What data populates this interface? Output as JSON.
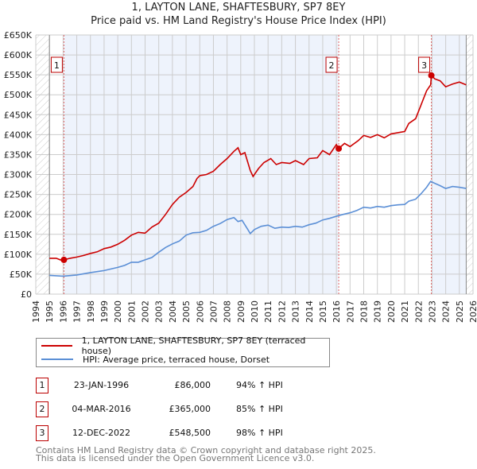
{
  "title_line1": "1, LAYTON LANE, SHAFTESBURY, SP7 8EY",
  "title_line2": "Price paid vs. HM Land Registry's House Price Index (HPI)",
  "legend": {
    "property": "1, LAYTON LANE, SHAFTESBURY, SP7 8EY (terraced house)",
    "hpi": "HPI: Average price, terraced house, Dorset"
  },
  "colors": {
    "property": "#cc0000",
    "hpi": "#5b8fd6",
    "band": "#eef3fc",
    "grid": "#cccccc"
  },
  "sales": [
    {
      "num": "1",
      "date": "23-JAN-1996",
      "price": "£86,000",
      "hpi": "94% ↑ HPI",
      "year": 1996.06,
      "value": 86
    },
    {
      "num": "2",
      "date": "04-MAR-2016",
      "price": "£365,000",
      "hpi": "85% ↑ HPI",
      "year": 2016.17,
      "value": 365
    },
    {
      "num": "3",
      "date": "12-DEC-2022",
      "price": "£548,500",
      "hpi": "98% ↑ HPI",
      "year": 2022.95,
      "value": 548.5
    }
  ],
  "footer": {
    "line1": "Contains HM Land Registry data © Crown copyright and database right 2025.",
    "line2": "This data is licensed under the Open Government Licence v3.0."
  },
  "chart_data": {
    "type": "line",
    "title": "1, LAYTON LANE, SHAFTESBURY, SP7 8EY — Price paid vs. HM Land Registry's House Price Index (HPI)",
    "xlim": [
      1994,
      2026
    ],
    "ylim": [
      0,
      650
    ],
    "yunit": "£K",
    "grid": true,
    "legend_position": "below",
    "xticks": [
      1994,
      1995,
      1996,
      1997,
      1998,
      1999,
      2000,
      2001,
      2002,
      2003,
      2004,
      2005,
      2006,
      2007,
      2008,
      2009,
      2010,
      2011,
      2012,
      2013,
      2014,
      2015,
      2016,
      2017,
      2018,
      2019,
      2020,
      2021,
      2022,
      2023,
      2024,
      2025,
      2026
    ],
    "yticks": [
      0,
      50,
      100,
      150,
      200,
      250,
      300,
      350,
      400,
      450,
      500,
      550,
      600,
      650
    ],
    "ytick_labels": [
      "£0",
      "£50K",
      "£100K",
      "£150K",
      "£200K",
      "£250K",
      "£300K",
      "£350K",
      "£400K",
      "£450K",
      "£500K",
      "£550K",
      "£600K",
      "£650K"
    ],
    "data_start": 1995,
    "data_end": 2025.5,
    "series": [
      {
        "name": "1, LAYTON LANE, SHAFTESBURY, SP7 8EY (terraced house)",
        "points": [
          [
            1995,
            90
          ],
          [
            1995.5,
            90
          ],
          [
            1995.8,
            86
          ],
          [
            1996.06,
            86
          ],
          [
            1996.5,
            90
          ],
          [
            1997,
            93
          ],
          [
            1997.5,
            97
          ],
          [
            1998,
            102
          ],
          [
            1998.5,
            106
          ],
          [
            1999,
            114
          ],
          [
            1999.5,
            118
          ],
          [
            2000,
            125
          ],
          [
            2000.5,
            135
          ],
          [
            2001,
            148
          ],
          [
            2001.5,
            155
          ],
          [
            2002,
            153
          ],
          [
            2002.5,
            168
          ],
          [
            2003,
            178
          ],
          [
            2003.5,
            200
          ],
          [
            2004,
            225
          ],
          [
            2004.5,
            243
          ],
          [
            2005,
            255
          ],
          [
            2005.5,
            270
          ],
          [
            2005.8,
            290
          ],
          [
            2006,
            297
          ],
          [
            2006.5,
            300
          ],
          [
            2007,
            308
          ],
          [
            2007.5,
            325
          ],
          [
            2008,
            340
          ],
          [
            2008.5,
            358
          ],
          [
            2008.8,
            367
          ],
          [
            2009,
            350
          ],
          [
            2009.3,
            355
          ],
          [
            2009.7,
            310
          ],
          [
            2009.9,
            295
          ],
          [
            2010.3,
            315
          ],
          [
            2010.7,
            330
          ],
          [
            2011.2,
            340
          ],
          [
            2011.6,
            325
          ],
          [
            2012,
            330
          ],
          [
            2012.6,
            328
          ],
          [
            2013,
            335
          ],
          [
            2013.6,
            325
          ],
          [
            2014,
            340
          ],
          [
            2014.6,
            342
          ],
          [
            2015,
            360
          ],
          [
            2015.5,
            350
          ],
          [
            2016,
            375
          ],
          [
            2016.17,
            365
          ],
          [
            2016.6,
            378
          ],
          [
            2017,
            370
          ],
          [
            2017.6,
            385
          ],
          [
            2018,
            398
          ],
          [
            2018.5,
            393
          ],
          [
            2019,
            400
          ],
          [
            2019.5,
            392
          ],
          [
            2020,
            402
          ],
          [
            2020.5,
            405
          ],
          [
            2021,
            408
          ],
          [
            2021.3,
            428
          ],
          [
            2021.8,
            440
          ],
          [
            2022.2,
            475
          ],
          [
            2022.6,
            510
          ],
          [
            2022.9,
            525
          ],
          [
            2022.95,
            548.5
          ],
          [
            2023.2,
            540
          ],
          [
            2023.6,
            535
          ],
          [
            2024,
            520
          ],
          [
            2024.5,
            527
          ],
          [
            2025,
            532
          ],
          [
            2025.5,
            525
          ]
        ]
      },
      {
        "name": "HPI: Average price, terraced house, Dorset",
        "points": [
          [
            1995,
            47
          ],
          [
            1996,
            45
          ],
          [
            1997,
            48
          ],
          [
            1998,
            54
          ],
          [
            1999,
            59
          ],
          [
            2000,
            67
          ],
          [
            2000.5,
            72
          ],
          [
            2001,
            80
          ],
          [
            2001.5,
            80
          ],
          [
            2002,
            86
          ],
          [
            2002.5,
            92
          ],
          [
            2003,
            105
          ],
          [
            2003.5,
            117
          ],
          [
            2004,
            126
          ],
          [
            2004.5,
            133
          ],
          [
            2005,
            148
          ],
          [
            2005.5,
            154
          ],
          [
            2006,
            155
          ],
          [
            2006.5,
            160
          ],
          [
            2007,
            170
          ],
          [
            2007.5,
            177
          ],
          [
            2008,
            187
          ],
          [
            2008.5,
            192
          ],
          [
            2008.8,
            182
          ],
          [
            2009.1,
            185
          ],
          [
            2009.5,
            163
          ],
          [
            2009.7,
            152
          ],
          [
            2010,
            162
          ],
          [
            2010.5,
            170
          ],
          [
            2011,
            173
          ],
          [
            2011.5,
            165
          ],
          [
            2012,
            168
          ],
          [
            2012.5,
            167
          ],
          [
            2013,
            170
          ],
          [
            2013.5,
            168
          ],
          [
            2014,
            174
          ],
          [
            2014.5,
            178
          ],
          [
            2015,
            186
          ],
          [
            2015.5,
            190
          ],
          [
            2016.17,
            197
          ],
          [
            2016.5,
            200
          ],
          [
            2017,
            204
          ],
          [
            2017.5,
            210
          ],
          [
            2018,
            218
          ],
          [
            2018.5,
            216
          ],
          [
            2019,
            220
          ],
          [
            2019.5,
            218
          ],
          [
            2020,
            222
          ],
          [
            2020.5,
            224
          ],
          [
            2021,
            225
          ],
          [
            2021.3,
            233
          ],
          [
            2021.8,
            238
          ],
          [
            2022.2,
            252
          ],
          [
            2022.6,
            268
          ],
          [
            2022.9,
            283
          ],
          [
            2023.2,
            278
          ],
          [
            2023.6,
            272
          ],
          [
            2024,
            265
          ],
          [
            2024.5,
            270
          ],
          [
            2025,
            268
          ],
          [
            2025.5,
            265
          ]
        ]
      }
    ]
  }
}
